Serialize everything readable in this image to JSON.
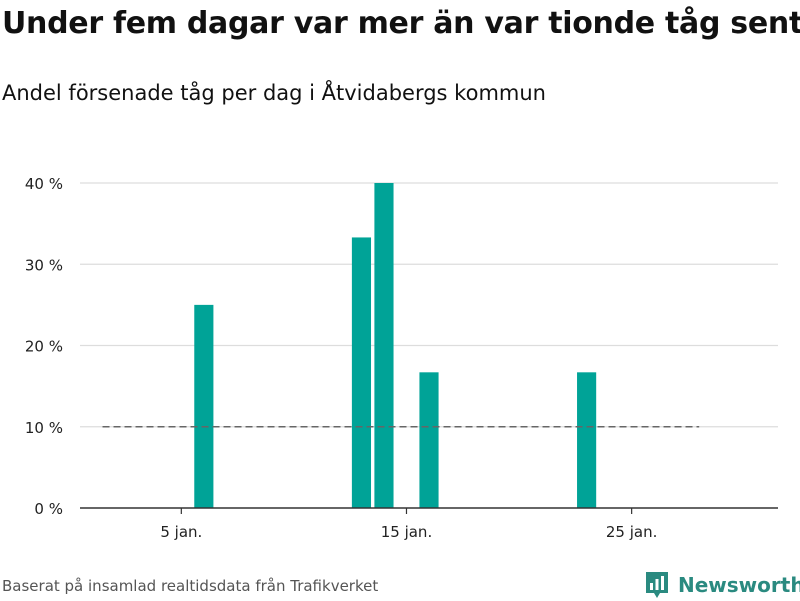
{
  "title": "Under fem dagar var mer än var tionde tåg sent",
  "subtitle": "Andel försenade tåg per dag i Åtvidabergs kommun",
  "source": "Baserat på insamlad realtidsdata från Trafikverket",
  "brand": {
    "name": "Newsworthy",
    "icon": "newsworthy-logo-icon"
  },
  "colors": {
    "bar": "#00a397",
    "grid": "#dddddd",
    "axis": "#333333",
    "reference": "#666666",
    "brand": "#2a8a80"
  },
  "chart_data": {
    "type": "bar",
    "title": "",
    "xlabel": "",
    "ylabel": "",
    "x_domain": [
      1,
      31
    ],
    "ylim": [
      0,
      40
    ],
    "yticks": [
      {
        "value": 0,
        "label": "0 %"
      },
      {
        "value": 10,
        "label": "10 %"
      },
      {
        "value": 20,
        "label": "20 %"
      },
      {
        "value": 30,
        "label": "30 %"
      },
      {
        "value": 40,
        "label": "40 %"
      }
    ],
    "xticks": [
      {
        "day": 5,
        "label": "5 jan."
      },
      {
        "day": 15,
        "label": "15 jan."
      },
      {
        "day": 25,
        "label": "25 jan."
      }
    ],
    "series": [
      {
        "points": [
          {
            "day": 6,
            "value": 25
          },
          {
            "day": 13,
            "value": 33.3
          },
          {
            "day": 14,
            "value": 40
          },
          {
            "day": 16,
            "value": 16.7
          },
          {
            "day": 23,
            "value": 16.7
          }
        ]
      }
    ],
    "reference_line": {
      "value": 10,
      "from_day": 1.5,
      "to_day": 28
    },
    "grid": true,
    "legend": "none"
  }
}
